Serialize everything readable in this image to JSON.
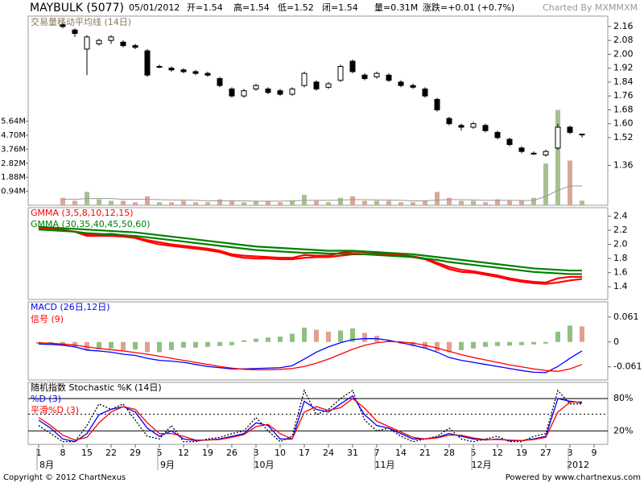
{
  "header": {
    "symbol": "MAYBULK (5077)",
    "date": "05/01/2012",
    "open": "开=1.54",
    "high": "高=1.54",
    "low": "低=1.52",
    "close": "闭=1.54",
    "volume": "量=0.31M",
    "change": "涨跌=+0.01 (+0.7%)",
    "credit": "Charted By MXMMXM"
  },
  "footer": {
    "copyright": "Copyright © 2012 ChartNexus",
    "powered": "Powered by www.chartnexus.com"
  },
  "chart_data": [
    {
      "type": "candlestick",
      "open": [
        null,
        null,
        2.17,
        2.14,
        2.03,
        2.06,
        2.08,
        2.07,
        2.05,
        2.02,
        1.93,
        1.92,
        1.91,
        1.9,
        1.89,
        1.86,
        1.8,
        1.76,
        1.8,
        1.8,
        1.79,
        1.77,
        1.82,
        1.84,
        1.81,
        1.85,
        1.96,
        1.88,
        1.87,
        1.88,
        1.84,
        1.82,
        1.8,
        1.74,
        1.63,
        1.59,
        1.58,
        1.59,
        1.55,
        1.51,
        1.46,
        1.43,
        1.42,
        1.46,
        1.58,
        1.54,
        null
      ],
      "high": [
        null,
        null,
        2.18,
        2.15,
        2.11,
        2.09,
        2.11,
        2.08,
        2.06,
        2.03,
        1.94,
        1.93,
        1.92,
        1.91,
        1.9,
        1.87,
        1.81,
        1.8,
        1.83,
        1.81,
        1.8,
        1.81,
        1.9,
        1.85,
        1.84,
        1.94,
        1.97,
        1.89,
        1.9,
        1.89,
        1.85,
        1.83,
        1.81,
        1.75,
        1.64,
        1.6,
        1.61,
        1.6,
        1.56,
        1.52,
        1.47,
        1.44,
        1.45,
        1.6,
        1.59,
        1.54,
        null
      ],
      "low": [
        null,
        null,
        2.15,
        2.1,
        1.88,
        2.05,
        2.06,
        2.04,
        2.03,
        1.87,
        1.92,
        1.9,
        1.89,
        1.88,
        1.87,
        1.81,
        1.75,
        1.75,
        1.79,
        1.77,
        1.76,
        1.76,
        1.81,
        1.79,
        1.8,
        1.84,
        1.89,
        1.85,
        1.86,
        1.84,
        1.81,
        1.8,
        1.75,
        1.67,
        1.59,
        1.56,
        1.57,
        1.55,
        1.51,
        1.47,
        1.43,
        1.42,
        1.41,
        1.45,
        1.54,
        1.52,
        null
      ],
      "close": [
        null,
        null,
        2.16,
        2.12,
        2.1,
        2.08,
        2.1,
        2.05,
        2.04,
        1.88,
        1.93,
        1.91,
        1.9,
        1.89,
        1.88,
        1.82,
        1.76,
        1.79,
        1.82,
        1.78,
        1.77,
        1.8,
        1.89,
        1.8,
        1.83,
        1.93,
        1.9,
        1.86,
        1.89,
        1.85,
        1.82,
        1.81,
        1.76,
        1.68,
        1.6,
        1.58,
        1.6,
        1.56,
        1.52,
        1.48,
        1.44,
        1.43,
        1.44,
        1.58,
        1.55,
        1.54,
        null
      ],
      "up_color": "#ffffff",
      "down_color": "#000000",
      "ylim": [
        1.13,
        2.22
      ],
      "yticks": [
        2.16,
        2.08,
        {
          "value": 2,
          "label": "2.00"
        },
        1.92,
        1.84,
        1.76,
        1.68,
        {
          "value": 1.6,
          "label": "1.60"
        },
        1.52,
        1.36
      ],
      "volume": {
        "values": [
          null,
          null,
          0.5,
          0.3,
          0.9,
          0.4,
          0.3,
          0.3,
          0.2,
          0.6,
          0.2,
          0.2,
          0.3,
          0.2,
          0.2,
          0.4,
          0.3,
          0.2,
          0.3,
          0.3,
          0.2,
          0.3,
          0.7,
          0.3,
          0.2,
          0.5,
          0.6,
          0.3,
          0.3,
          0.3,
          0.2,
          0.2,
          0.3,
          0.9,
          0.5,
          0.3,
          0.3,
          0.2,
          0.4,
          0.3,
          0.3,
          0.5,
          2.8,
          6.4,
          3.0,
          0.31,
          null
        ],
        "up_color": "#a8c090",
        "down_color": "#d8a898"
      },
      "volume_ma": {
        "name": "交易量移动平均线 (14日)",
        "color": "#999999",
        "values": [
          null,
          null,
          0.4,
          0.4,
          0.45,
          0.45,
          0.45,
          0.4,
          0.4,
          0.4,
          0.38,
          0.36,
          0.35,
          0.33,
          0.3,
          0.3,
          0.3,
          0.3,
          0.28,
          0.28,
          0.28,
          0.3,
          0.33,
          0.33,
          0.33,
          0.35,
          0.38,
          0.38,
          0.36,
          0.35,
          0.33,
          0.3,
          0.3,
          0.35,
          0.38,
          0.38,
          0.36,
          0.33,
          0.33,
          0.33,
          0.32,
          0.33,
          0.6,
          1.0,
          1.3,
          1.3,
          null
        ]
      },
      "y2lim": [
        0,
        12.7
      ],
      "y2ticks": [
        {
          "value": 5.64,
          "label": "5.64M"
        },
        {
          "value": 4.7,
          "label": "4.70M"
        },
        {
          "value": 3.76,
          "label": "3.76M"
        },
        {
          "value": 2.82,
          "label": "2.82M"
        },
        {
          "value": 1.88,
          "label": "1.88M"
        },
        {
          "value": 0.94,
          "label": "0.94M"
        }
      ]
    },
    {
      "type": "band",
      "series": [
        {
          "name": "GMMA (3,5,8,10,12,15)",
          "color": "#ff0000",
          "values": [
            2.25,
            2.23,
            2.21,
            2.18,
            2.14,
            2.14,
            2.15,
            2.13,
            2.1,
            2.06,
            2.03,
            2.0,
            1.98,
            1.96,
            1.94,
            1.91,
            1.86,
            1.84,
            1.83,
            1.82,
            1.81,
            1.81,
            1.85,
            1.84,
            1.84,
            1.88,
            1.9,
            1.89,
            1.89,
            1.87,
            1.85,
            1.83,
            1.8,
            1.74,
            1.68,
            1.64,
            1.62,
            1.59,
            1.56,
            1.52,
            1.49,
            1.47,
            1.46,
            1.52,
            1.54,
            1.54,
            null
          ],
          "lows": [
            2.23,
            2.22,
            2.2,
            2.18,
            2.12,
            2.12,
            2.12,
            2.11,
            2.09,
            2.04,
            2.0,
            1.98,
            1.96,
            1.94,
            1.92,
            1.89,
            1.84,
            1.81,
            1.8,
            1.8,
            1.79,
            1.79,
            1.81,
            1.82,
            1.82,
            1.84,
            1.86,
            1.86,
            1.87,
            1.86,
            1.84,
            1.82,
            1.79,
            1.72,
            1.65,
            1.61,
            1.6,
            1.57,
            1.54,
            1.5,
            1.47,
            1.45,
            1.44,
            1.46,
            1.49,
            1.51,
            null
          ]
        },
        {
          "name": "GMMA (30,35,40,45,50,60)",
          "color": "#008000",
          "values": [
            2.25,
            2.24,
            2.23,
            2.22,
            2.21,
            2.2,
            2.19,
            2.18,
            2.17,
            2.15,
            2.13,
            2.11,
            2.09,
            2.07,
            2.05,
            2.03,
            2.01,
            1.99,
            1.97,
            1.96,
            1.95,
            1.94,
            1.93,
            1.92,
            1.91,
            1.91,
            1.91,
            1.9,
            1.89,
            1.88,
            1.87,
            1.86,
            1.84,
            1.82,
            1.8,
            1.78,
            1.76,
            1.74,
            1.72,
            1.7,
            1.68,
            1.66,
            1.65,
            1.64,
            1.63,
            1.63,
            null
          ],
          "lows": [
            2.21,
            2.2,
            2.19,
            2.18,
            2.16,
            2.15,
            2.14,
            2.13,
            2.12,
            2.1,
            2.08,
            2.06,
            2.04,
            2.02,
            2.0,
            1.98,
            1.96,
            1.94,
            1.92,
            1.91,
            1.9,
            1.89,
            1.88,
            1.88,
            1.87,
            1.87,
            1.87,
            1.86,
            1.85,
            1.84,
            1.83,
            1.82,
            1.8,
            1.78,
            1.75,
            1.73,
            1.71,
            1.69,
            1.67,
            1.65,
            1.63,
            1.61,
            1.6,
            1.59,
            1.58,
            1.58,
            null
          ]
        }
      ],
      "ylim": [
        1.22,
        2.52
      ],
      "yticks": [
        2.4,
        2.2,
        {
          "value": 2,
          "label": "2.0"
        },
        1.8,
        1.6,
        1.4
      ]
    },
    {
      "type": "macd",
      "series": [
        {
          "name": "MACD (26日,12日)",
          "color": "#0000ff",
          "values": [
            -0.005,
            -0.006,
            -0.008,
            -0.012,
            -0.02,
            -0.022,
            -0.025,
            -0.03,
            -0.033,
            -0.04,
            -0.045,
            -0.047,
            -0.05,
            -0.055,
            -0.06,
            -0.063,
            -0.066,
            -0.066,
            -0.065,
            -0.064,
            -0.063,
            -0.058,
            -0.042,
            -0.025,
            -0.012,
            -0.002,
            0.006,
            0.008,
            0.008,
            0.004,
            -0.002,
            -0.008,
            -0.015,
            -0.025,
            -0.038,
            -0.045,
            -0.05,
            -0.055,
            -0.06,
            -0.065,
            -0.07,
            -0.074,
            -0.075,
            -0.06,
            -0.04,
            -0.022,
            null
          ]
        },
        {
          "name": "信号 (9)",
          "color": "#ff0000",
          "values": [
            -0.002,
            -0.003,
            -0.005,
            -0.008,
            -0.012,
            -0.016,
            -0.019,
            -0.022,
            -0.026,
            -0.03,
            -0.035,
            -0.04,
            -0.045,
            -0.05,
            -0.055,
            -0.06,
            -0.064,
            -0.067,
            -0.068,
            -0.068,
            -0.067,
            -0.065,
            -0.06,
            -0.052,
            -0.042,
            -0.03,
            -0.018,
            -0.008,
            -0.002,
            0.001,
            0,
            -0.003,
            -0.008,
            -0.015,
            -0.023,
            -0.031,
            -0.038,
            -0.044,
            -0.05,
            -0.056,
            -0.061,
            -0.066,
            -0.07,
            -0.072,
            -0.066,
            -0.055,
            null
          ]
        }
      ],
      "histogram": {
        "values": [
          -0.005,
          -0.005,
          -0.008,
          -0.012,
          -0.02,
          -0.018,
          -0.016,
          -0.02,
          -0.018,
          -0.025,
          -0.025,
          -0.02,
          -0.014,
          -0.014,
          -0.012,
          -0.01,
          -0.008,
          0.004,
          0.008,
          0.011,
          0.013,
          0.02,
          0.035,
          0.03,
          0.025,
          0.028,
          0.033,
          0.022,
          0.015,
          0.005,
          -0.004,
          -0.01,
          -0.016,
          -0.022,
          -0.025,
          -0.02,
          -0.016,
          -0.012,
          -0.01,
          -0.009,
          -0.008,
          -0.006,
          -0.004,
          0.025,
          0.04,
          0.038,
          null
        ],
        "up_color": "#90c080",
        "down_color": "#e0a090"
      },
      "ylim": [
        -0.093,
        0.098
      ],
      "yticks": [
        0.061,
        0,
        -0.061
      ]
    },
    {
      "type": "stochastic",
      "series": [
        {
          "name": "随机指数 Stochastic %K (14日)",
          "color": "#000000",
          "dash": true,
          "values": [
            30,
            15,
            0,
            0,
            30,
            70,
            60,
            70,
            40,
            10,
            5,
            30,
            0,
            0,
            5,
            8,
            15,
            20,
            45,
            20,
            0,
            10,
            95,
            50,
            60,
            80,
            95,
            40,
            20,
            25,
            10,
            0,
            5,
            10,
            25,
            5,
            0,
            5,
            10,
            0,
            0,
            10,
            15,
            95,
            70,
            70,
            null
          ]
        },
        {
          "name": "%D (3)",
          "color": "#0000ff",
          "values": [
            40,
            25,
            5,
            0,
            15,
            50,
            60,
            65,
            55,
            25,
            10,
            20,
            5,
            2,
            3,
            5,
            10,
            15,
            35,
            30,
            5,
            5,
            75,
            60,
            55,
            70,
            85,
            50,
            30,
            25,
            15,
            5,
            5,
            8,
            15,
            10,
            5,
            3,
            5,
            2,
            2,
            5,
            10,
            80,
            75,
            72,
            null
          ]
        },
        {
          "name": "平滑%D (3)",
          "color": "#ff0000",
          "values": [
            45,
            30,
            12,
            3,
            8,
            35,
            55,
            65,
            60,
            35,
            15,
            15,
            10,
            3,
            3,
            4,
            8,
            13,
            28,
            32,
            15,
            5,
            55,
            65,
            58,
            63,
            80,
            62,
            38,
            28,
            18,
            8,
            5,
            7,
            12,
            12,
            7,
            4,
            4,
            3,
            2,
            4,
            8,
            55,
            73,
            74,
            null
          ]
        }
      ],
      "ylim": [
        -5,
        110
      ],
      "yticks": [
        {
          "value": 80,
          "label": "80%"
        },
        {
          "value": 20,
          "label": "20%"
        }
      ],
      "categories": [
        "1",
        null,
        "8",
        null,
        "15",
        null,
        "22",
        null,
        "29",
        null,
        "5",
        null,
        "12",
        null,
        "19",
        null,
        "26",
        null,
        "3",
        null,
        "10",
        null,
        "17",
        null,
        "24",
        null,
        "31",
        null,
        "7",
        null,
        "14",
        null,
        "21",
        null,
        "28",
        null,
        "5",
        null,
        "12",
        null,
        "19",
        null,
        "27",
        null,
        "3",
        null,
        "9"
      ],
      "months": [
        "8月",
        null,
        null,
        null,
        null,
        null,
        null,
        null,
        null,
        null,
        "9月",
        null,
        null,
        null,
        null,
        null,
        null,
        null,
        "10月",
        null,
        null,
        null,
        null,
        null,
        null,
        null,
        null,
        null,
        "11月",
        null,
        null,
        null,
        null,
        null,
        null,
        null,
        "12月",
        null,
        null,
        null,
        null,
        null,
        null,
        null,
        "2012",
        null,
        null
      ]
    }
  ]
}
